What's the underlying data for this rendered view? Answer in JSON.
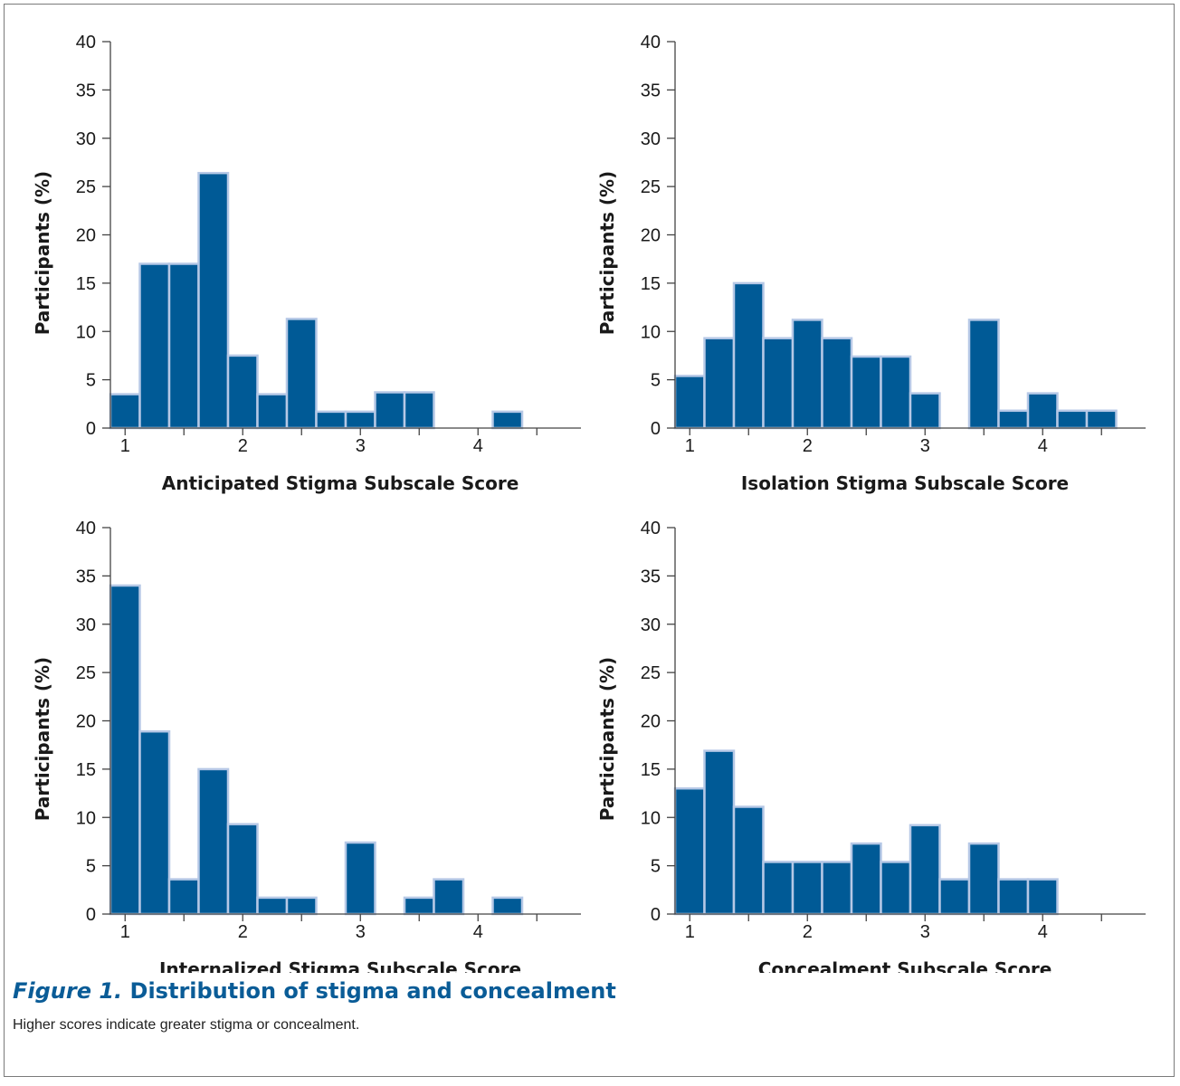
{
  "figure": {
    "label": "Figure 1.",
    "title": "Distribution of stigma and concealment",
    "note": "Higher scores indicate greater stigma or concealment."
  },
  "colors": {
    "bar_fill": "#005a96",
    "bar_stroke": "#b6c8e6",
    "axis": "#444444",
    "caption_title": "#0a5c97"
  },
  "chart_data": [
    {
      "type": "bar",
      "xlabel": "Anticipated Stigma Subscale Score",
      "ylabel": "Participants (%)",
      "ylim": [
        0,
        40
      ],
      "yticks": [
        0,
        5,
        10,
        15,
        20,
        25,
        30,
        35,
        40
      ],
      "xlim": [
        0.875,
        4.875
      ],
      "xticks": [
        1,
        2,
        3,
        4
      ],
      "minor_xticks": [
        1.5,
        2.5,
        3.5,
        4.5
      ],
      "bin_width": 0.25,
      "x": [
        1,
        1.25,
        1.5,
        1.75,
        2,
        2.25,
        2.5,
        2.75,
        3,
        3.25,
        3.5,
        3.75,
        4,
        4.25,
        4.5
      ],
      "values": [
        3.5,
        17,
        17,
        26.4,
        7.5,
        3.5,
        11.3,
        1.7,
        1.7,
        3.7,
        3.7,
        0,
        0,
        1.7,
        0
      ]
    },
    {
      "type": "bar",
      "xlabel": "Isolation Stigma Subscale Score",
      "ylabel": "Participants (%)",
      "ylim": [
        0,
        40
      ],
      "yticks": [
        0,
        5,
        10,
        15,
        20,
        25,
        30,
        35,
        40
      ],
      "xlim": [
        0.875,
        4.875
      ],
      "xticks": [
        1,
        2,
        3,
        4
      ],
      "minor_xticks": [
        1.5,
        2.5,
        3.5,
        4.5
      ],
      "bin_width": 0.25,
      "x": [
        1,
        1.25,
        1.5,
        1.75,
        2,
        2.25,
        2.5,
        2.75,
        3,
        3.25,
        3.5,
        3.75,
        4,
        4.25,
        4.5
      ],
      "values": [
        5.4,
        9.3,
        15,
        9.3,
        11.2,
        9.3,
        7.4,
        7.4,
        3.6,
        0,
        11.2,
        1.8,
        3.6,
        1.8,
        1.8
      ]
    },
    {
      "type": "bar",
      "xlabel": "Internalized Stigma Subscale Score",
      "ylabel": "Participants (%)",
      "ylim": [
        0,
        40
      ],
      "yticks": [
        0,
        5,
        10,
        15,
        20,
        25,
        30,
        35,
        40
      ],
      "xlim": [
        0.875,
        4.875
      ],
      "xticks": [
        1,
        2,
        3,
        4
      ],
      "minor_xticks": [
        1.5,
        2.5,
        3.5,
        4.5
      ],
      "bin_width": 0.25,
      "x": [
        1,
        1.25,
        1.5,
        1.75,
        2,
        2.25,
        2.5,
        2.75,
        3,
        3.25,
        3.5,
        3.75,
        4,
        4.25,
        4.5
      ],
      "values": [
        34,
        18.9,
        3.6,
        15,
        9.3,
        1.7,
        1.7,
        0,
        7.4,
        0,
        1.7,
        3.6,
        0,
        1.7,
        0
      ]
    },
    {
      "type": "bar",
      "xlabel": "Concealment Subscale Score",
      "ylabel": "Participants (%)",
      "ylim": [
        0,
        40
      ],
      "yticks": [
        0,
        5,
        10,
        15,
        20,
        25,
        30,
        35,
        40
      ],
      "xlim": [
        0.875,
        4.875
      ],
      "xticks": [
        1,
        2,
        3,
        4
      ],
      "minor_xticks": [
        1.5,
        2.5,
        3.5,
        4.5
      ],
      "bin_width": 0.25,
      "x": [
        1,
        1.25,
        1.5,
        1.75,
        2,
        2.25,
        2.5,
        2.75,
        3,
        3.25,
        3.5,
        3.75,
        4,
        4.25,
        4.5
      ],
      "values": [
        13,
        16.9,
        11.1,
        5.4,
        5.4,
        5.4,
        7.3,
        5.4,
        9.2,
        3.6,
        7.3,
        3.6,
        3.6,
        0,
        0
      ]
    }
  ]
}
